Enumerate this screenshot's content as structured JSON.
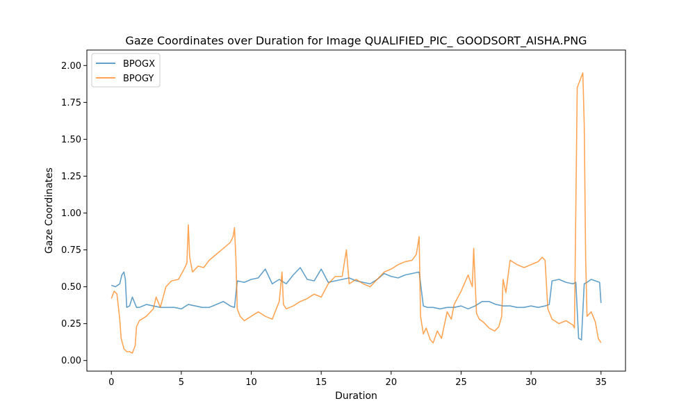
{
  "chart_data": {
    "type": "line",
    "title": "Gaze Coordinates over Duration for Image QUALIFIED_PIC_ GOODSORT_AISHA.PNG",
    "xlabel": "Duration",
    "ylabel": "Gaze Coordinates",
    "xlim": [
      -1.75,
      36.75
    ],
    "ylim": [
      -0.072,
      2.105
    ],
    "xticks": [
      0,
      5,
      10,
      15,
      20,
      25,
      30,
      35
    ],
    "xtick_labels": [
      "0",
      "5",
      "10",
      "15",
      "20",
      "25",
      "30",
      "35"
    ],
    "yticks": [
      0.0,
      0.25,
      0.5,
      0.75,
      1.0,
      1.25,
      1.5,
      1.75,
      2.0
    ],
    "ytick_labels": [
      "0.00",
      "0.25",
      "0.50",
      "0.75",
      "1.00",
      "1.25",
      "1.50",
      "1.75",
      "2.00"
    ],
    "grid": false,
    "legend_position": "top-left",
    "series": [
      {
        "name": "BPOGX",
        "color": "#1f77b4",
        "x": [
          0,
          0.3,
          0.6,
          0.75,
          0.9,
          1.0,
          1.1,
          1.3,
          1.5,
          1.8,
          2.0,
          2.5,
          3.0,
          3.5,
          4.0,
          4.5,
          5.0,
          5.5,
          6.0,
          6.5,
          7.0,
          7.5,
          8.0,
          8.5,
          8.8,
          9.0,
          9.5,
          10.0,
          10.5,
          11.0,
          11.5,
          12.0,
          12.5,
          13.0,
          13.5,
          14.0,
          14.5,
          15.0,
          15.5,
          16.0,
          16.5,
          17.0,
          17.5,
          18.0,
          18.5,
          19.0,
          19.5,
          20.0,
          20.5,
          21.0,
          21.5,
          22.0,
          22.3,
          22.6,
          23.0,
          23.5,
          24.0,
          24.5,
          25.0,
          25.5,
          26.0,
          26.5,
          27.0,
          27.5,
          28.0,
          28.5,
          29.0,
          29.5,
          30.0,
          30.5,
          31.0,
          31.3,
          31.5,
          32.0,
          32.5,
          33.0,
          33.2,
          33.4,
          33.6,
          33.8,
          34.0,
          34.3,
          34.6,
          34.9,
          35.0
        ],
        "y": [
          0.51,
          0.5,
          0.52,
          0.58,
          0.6,
          0.55,
          0.36,
          0.37,
          0.43,
          0.36,
          0.36,
          0.38,
          0.37,
          0.36,
          0.36,
          0.36,
          0.35,
          0.38,
          0.37,
          0.36,
          0.36,
          0.38,
          0.4,
          0.37,
          0.36,
          0.54,
          0.53,
          0.55,
          0.56,
          0.62,
          0.52,
          0.55,
          0.52,
          0.58,
          0.63,
          0.55,
          0.54,
          0.62,
          0.53,
          0.54,
          0.55,
          0.56,
          0.54,
          0.53,
          0.52,
          0.55,
          0.59,
          0.57,
          0.56,
          0.58,
          0.59,
          0.6,
          0.37,
          0.36,
          0.36,
          0.35,
          0.36,
          0.36,
          0.37,
          0.35,
          0.37,
          0.4,
          0.4,
          0.38,
          0.37,
          0.37,
          0.36,
          0.36,
          0.37,
          0.36,
          0.37,
          0.38,
          0.54,
          0.55,
          0.53,
          0.52,
          0.53,
          0.15,
          0.14,
          0.52,
          0.53,
          0.55,
          0.54,
          0.53,
          0.39
        ]
      },
      {
        "name": "BPOGY",
        "color": "#ff7f0e",
        "x": [
          0,
          0.2,
          0.4,
          0.6,
          0.7,
          0.9,
          1.1,
          1.3,
          1.5,
          1.7,
          1.8,
          2.0,
          2.5,
          3.0,
          3.2,
          3.5,
          3.9,
          4.3,
          4.8,
          5.2,
          5.4,
          5.5,
          5.6,
          5.8,
          6.2,
          6.6,
          7.0,
          7.5,
          8.0,
          8.5,
          8.7,
          8.8,
          8.9,
          9.0,
          9.2,
          9.5,
          10.0,
          10.5,
          11.0,
          11.5,
          12.0,
          12.2,
          12.3,
          12.5,
          13.0,
          13.5,
          14.0,
          14.5,
          15.0,
          15.5,
          16.0,
          16.5,
          16.8,
          17.0,
          17.5,
          18.0,
          18.5,
          19.0,
          19.5,
          20.0,
          20.5,
          21.0,
          21.5,
          21.8,
          22.0,
          22.1,
          22.3,
          22.5,
          22.8,
          23.0,
          23.3,
          23.6,
          24.0,
          24.3,
          24.5,
          25.0,
          25.5,
          25.8,
          25.9,
          26.1,
          26.3,
          26.6,
          27.0,
          27.4,
          27.7,
          27.9,
          28.0,
          28.2,
          28.5,
          29.0,
          29.5,
          30.0,
          30.5,
          30.8,
          31.0,
          31.2,
          31.5,
          32.0,
          32.5,
          33.0,
          33.1,
          33.3,
          33.5,
          33.7,
          33.8,
          33.9,
          34.0,
          34.3,
          34.6,
          34.8,
          35.0
        ],
        "y": [
          0.42,
          0.47,
          0.45,
          0.28,
          0.15,
          0.08,
          0.06,
          0.06,
          0.05,
          0.1,
          0.23,
          0.27,
          0.3,
          0.35,
          0.43,
          0.36,
          0.5,
          0.54,
          0.55,
          0.62,
          0.66,
          0.92,
          0.7,
          0.6,
          0.64,
          0.63,
          0.68,
          0.72,
          0.76,
          0.8,
          0.84,
          0.9,
          0.7,
          0.35,
          0.3,
          0.27,
          0.3,
          0.33,
          0.3,
          0.28,
          0.4,
          0.6,
          0.38,
          0.35,
          0.37,
          0.4,
          0.42,
          0.45,
          0.43,
          0.52,
          0.57,
          0.57,
          0.75,
          0.52,
          0.55,
          0.52,
          0.5,
          0.55,
          0.6,
          0.62,
          0.65,
          0.67,
          0.68,
          0.72,
          0.84,
          0.3,
          0.18,
          0.22,
          0.14,
          0.12,
          0.2,
          0.15,
          0.33,
          0.28,
          0.38,
          0.47,
          0.58,
          0.5,
          0.76,
          0.32,
          0.28,
          0.26,
          0.22,
          0.2,
          0.23,
          0.3,
          0.55,
          0.46,
          0.68,
          0.65,
          0.63,
          0.65,
          0.67,
          0.7,
          0.68,
          0.35,
          0.28,
          0.25,
          0.27,
          0.24,
          0.22,
          1.85,
          1.9,
          1.95,
          1.6,
          0.7,
          0.3,
          0.33,
          0.26,
          0.15,
          0.12
        ]
      }
    ]
  }
}
